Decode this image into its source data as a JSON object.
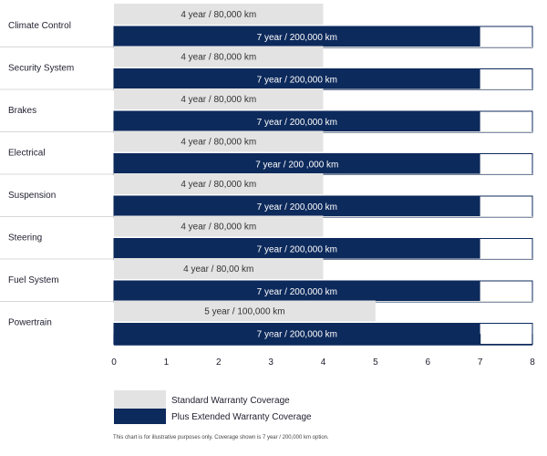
{
  "chart_data": {
    "type": "bar",
    "orientation": "horizontal",
    "categories": [
      "Climate Control",
      "Security System",
      "Brakes",
      "Electrical",
      "Suspension",
      "Steering",
      "Fuel System",
      "Powertrain"
    ],
    "series": [
      {
        "name": "Standard Warranty Coverage",
        "values": [
          4,
          4,
          4,
          4,
          4,
          4,
          4,
          5
        ],
        "labels": [
          "4 year / 80,000 km",
          "4 year / 80,000 km",
          "4 year / 80,000 km",
          "4 year / 80,000 km",
          "4 year / 80,000 km",
          "4 year / 80,000 km",
          "4 year / 80,00 km",
          "5 year / 100,000 km"
        ],
        "color": "#e3e3e3"
      },
      {
        "name": "Plus Extended Warranty Coverage",
        "values": [
          7,
          7,
          7,
          7,
          7,
          7,
          7,
          7
        ],
        "labels": [
          "7 year / 200,000 km",
          "7 year / 200,000 km",
          "7 year / 200,000 km",
          "7 year / 200 ,000 km",
          "7 year / 200,000 km",
          "7 year / 200,000 km",
          "7 year / 200,000 km",
          "7 year / 200,000 km"
        ],
        "color": "#0d2a5c"
      }
    ],
    "xlim": [
      0,
      8
    ],
    "xticks": [
      "0",
      "1",
      "2",
      "3",
      "4",
      "5",
      "6",
      "7",
      "8"
    ],
    "outline_color": "#0d2a5c",
    "legend_position": "bottom-left",
    "footnote": "This chart is for illustrative purposes only. Coverage shown is 7 year / 200,000 km option."
  }
}
